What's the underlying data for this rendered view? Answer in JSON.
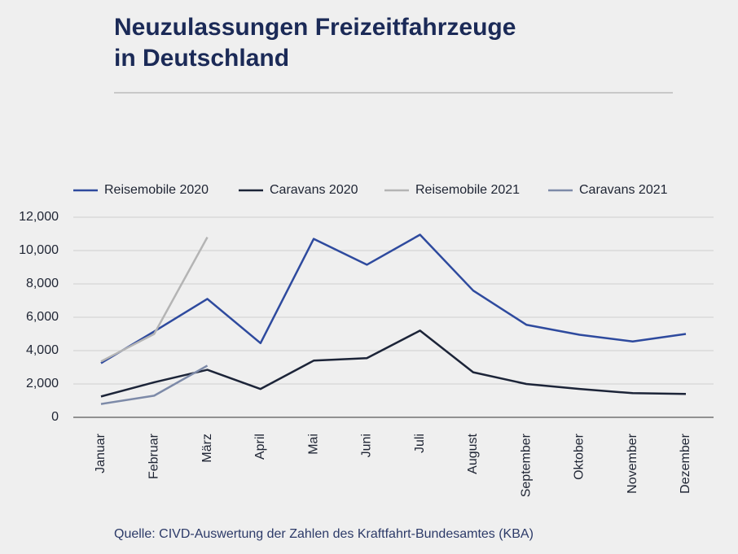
{
  "chart_data": {
    "type": "line",
    "title_lines": [
      "Neuzulassungen Freizeitfahrzeuge",
      "in Deutschland"
    ],
    "source": "Quelle: CIVD-Auswertung der Zahlen des Kraftfahrt-Bundesamtes (KBA)",
    "categories": [
      "Januar",
      "Februar",
      "März",
      "April",
      "Mai",
      "Juni",
      "Juli",
      "August",
      "September",
      "Oktober",
      "November",
      "Dezember"
    ],
    "series": [
      {
        "name": "Reisemobile 2020",
        "color": "#2e4a9e",
        "values": [
          3250,
          5150,
          7100,
          4450,
          10700,
          9150,
          10950,
          7600,
          5550,
          4950,
          4550,
          5000
        ]
      },
      {
        "name": "Caravans 2020",
        "color": "#1c2438",
        "values": [
          1250,
          2100,
          2850,
          1700,
          3400,
          3550,
          5200,
          2700,
          2000,
          1700,
          1450,
          1400
        ]
      },
      {
        "name": "Reisemobile 2021",
        "color": "#b4b4b4",
        "values": [
          3350,
          5000,
          10800,
          null,
          null,
          null,
          null,
          null,
          null,
          null,
          null,
          null
        ]
      },
      {
        "name": "Caravans 2021",
        "color": "#7d8aa8",
        "values": [
          800,
          1300,
          3100,
          null,
          null,
          null,
          null,
          null,
          null,
          null,
          null,
          null
        ]
      }
    ],
    "ylim": [
      0,
      12000
    ],
    "yticks": [
      0,
      {
        "value": 2000,
        "label": "2,000"
      },
      {
        "value": 4000,
        "label": "4,000"
      },
      {
        "value": 6000,
        "label": "6,000"
      },
      {
        "value": 8000,
        "label": "8,000"
      },
      {
        "value": 10000,
        "label": "10,000"
      },
      {
        "value": 12000,
        "label": "12,000"
      }
    ],
    "grid": true,
    "legend": "top"
  }
}
